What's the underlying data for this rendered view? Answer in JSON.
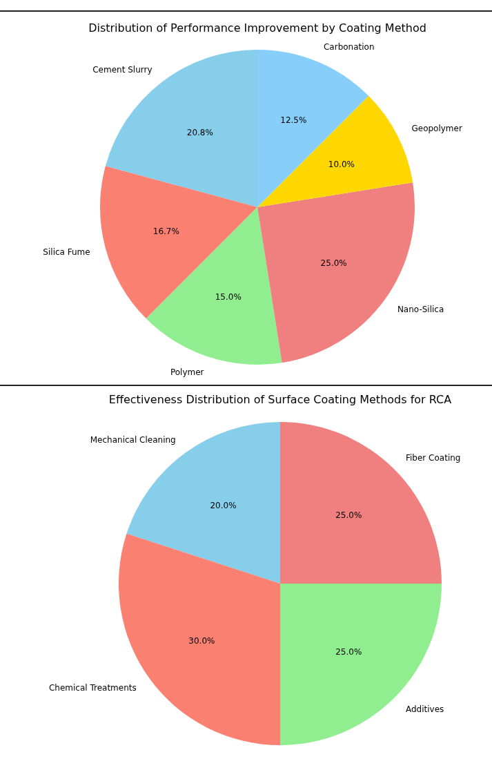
{
  "chart_data": [
    {
      "type": "pie",
      "title": "Distribution of Performance Improvement by Coating Method",
      "categories": [
        "Cement Slurry",
        "Silica Fume",
        "Polymer",
        "Nano-Silica",
        "Geopolymer",
        "Carbonation"
      ],
      "values": [
        20.8,
        16.7,
        15.0,
        25.0,
        10.0,
        12.5
      ],
      "colors": [
        "#87ceeb",
        "#fa8072",
        "#90ee90",
        "#f08080",
        "#ffd700",
        "#87cefa"
      ],
      "value_labels": [
        "20.8%",
        "16.7%",
        "15.0%",
        "25.0%",
        "10.0%",
        "12.5%"
      ]
    },
    {
      "type": "pie",
      "title": "Effectiveness Distribution of Surface Coating Methods for RCA",
      "categories": [
        "Mechanical Cleaning",
        "Chemical Treatments",
        "Additives",
        "Fiber Coating"
      ],
      "values": [
        20.0,
        30.0,
        25.0,
        25.0
      ],
      "colors": [
        "#87ceeb",
        "#fa8072",
        "#90ee90",
        "#f08080"
      ],
      "value_labels": [
        "20.0%",
        "30.0%",
        "25.0%",
        "25.0%"
      ]
    }
  ]
}
